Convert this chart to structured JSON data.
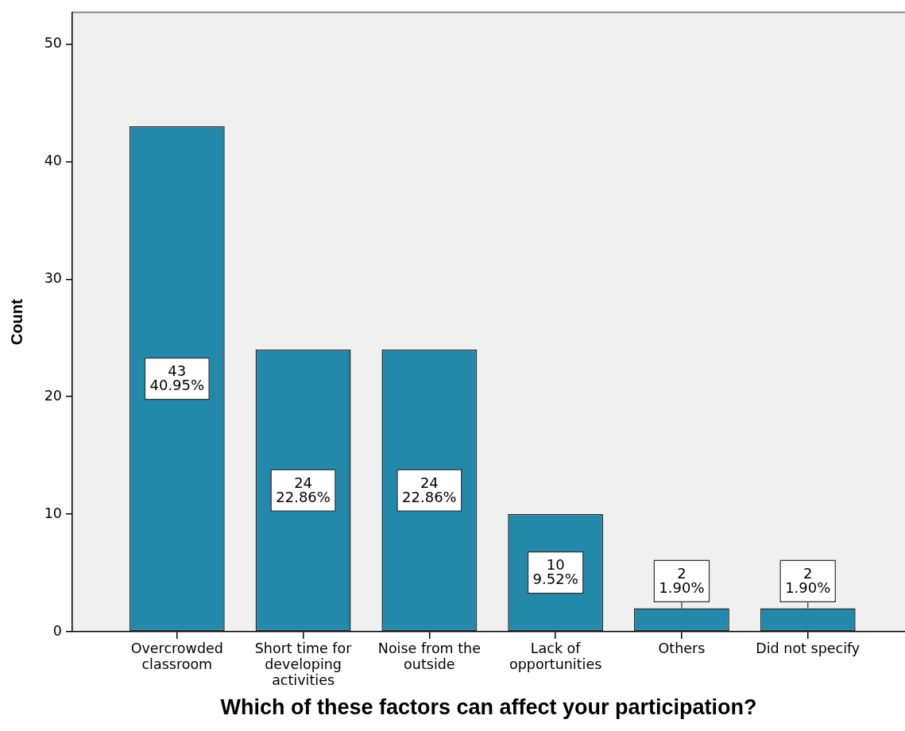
{
  "chart_data": {
    "type": "bar",
    "xlabel": "Which of these factors can affect your participation?",
    "ylabel": "Count",
    "categories": [
      "Overcrowded classroom",
      "Short time for developing activities",
      "Noise from the outside",
      "Lack of opportunities",
      "Others",
      "Did not specify"
    ],
    "values": [
      43,
      24,
      24,
      10,
      2,
      2
    ],
    "color": "#2389aa",
    "value_labels": [
      "43\n40.95%",
      "24\n22.86%",
      "24\n22.86%",
      "10\n9.52%",
      "2\n1.90%",
      "2\n1.90%"
    ],
    "ylim": [
      0,
      52.7
    ],
    "yticks": [
      0,
      10,
      20,
      30,
      40,
      50
    ]
  }
}
